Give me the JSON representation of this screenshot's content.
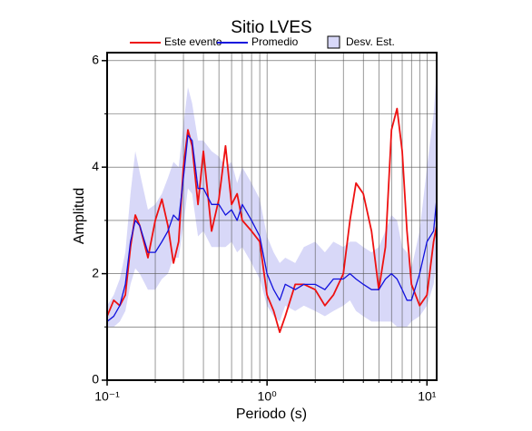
{
  "chart_data": {
    "type": "line",
    "title": "Sitio LVES",
    "xlabel": "Periodo (s)",
    "ylabel": "Amplitud",
    "xscale": "log",
    "grid": true,
    "xlim": [
      0.1,
      11.5
    ],
    "ylim": [
      0,
      6.15
    ],
    "xticks": [
      {
        "value": 0.1,
        "label": "10⁻¹"
      },
      {
        "value": 1,
        "label": "10⁰"
      },
      {
        "value": 10,
        "label": "10¹"
      }
    ],
    "x_minor_ticks": [
      0.2,
      0.3,
      0.4,
      0.5,
      0.6,
      0.7,
      0.8,
      0.9,
      2,
      3,
      4,
      5,
      6,
      7,
      8,
      9
    ],
    "yticks": [
      0,
      2,
      4,
      6
    ],
    "y_minor_ticks": [
      1,
      3,
      5
    ],
    "x": [
      0.1,
      0.11,
      0.12,
      0.13,
      0.14,
      0.15,
      0.16,
      0.18,
      0.2,
      0.22,
      0.24,
      0.26,
      0.28,
      0.3,
      0.32,
      0.34,
      0.37,
      0.4,
      0.45,
      0.5,
      0.55,
      0.6,
      0.65,
      0.7,
      0.8,
      0.9,
      1.0,
      1.1,
      1.2,
      1.3,
      1.5,
      1.7,
      2.0,
      2.3,
      2.6,
      3.0,
      3.3,
      3.6,
      4.0,
      4.5,
      5.0,
      5.5,
      6.0,
      6.5,
      7.0,
      7.5,
      8.0,
      9.0,
      10.0,
      11.0,
      11.5
    ],
    "series": [
      {
        "name": "Este evento",
        "color": "#ee1111",
        "values": [
          1.2,
          1.5,
          1.4,
          1.6,
          2.5,
          3.1,
          2.9,
          2.3,
          3.0,
          3.4,
          2.9,
          2.2,
          2.6,
          4.0,
          4.7,
          4.4,
          3.3,
          4.3,
          2.8,
          3.4,
          4.4,
          3.3,
          3.5,
          3.0,
          2.8,
          2.6,
          1.6,
          1.3,
          0.9,
          1.2,
          1.8,
          1.8,
          1.7,
          1.4,
          1.6,
          2.0,
          3.0,
          3.7,
          3.5,
          2.8,
          1.7,
          2.5,
          4.7,
          5.1,
          4.3,
          2.8,
          1.8,
          1.4,
          1.6,
          2.6,
          2.9
        ]
      },
      {
        "name": "Promedio",
        "color": "#1111dd",
        "values": [
          1.1,
          1.2,
          1.4,
          1.8,
          2.6,
          3.0,
          2.9,
          2.4,
          2.4,
          2.6,
          2.8,
          3.1,
          3.0,
          3.8,
          4.6,
          4.5,
          3.6,
          3.6,
          3.3,
          3.3,
          3.1,
          3.2,
          3.0,
          3.3,
          3.0,
          2.7,
          2.0,
          1.7,
          1.5,
          1.8,
          1.7,
          1.8,
          1.8,
          1.7,
          1.9,
          1.9,
          2.0,
          1.9,
          1.8,
          1.7,
          1.7,
          1.9,
          2.0,
          1.9,
          1.7,
          1.5,
          1.5,
          2.0,
          2.6,
          2.8,
          3.4
        ]
      }
    ],
    "band": {
      "name": "Desv. Est.",
      "color": "#d8d8f8",
      "lower": [
        1.0,
        1.0,
        1.1,
        1.3,
        1.8,
        2.1,
        2.0,
        1.7,
        1.7,
        1.9,
        2.0,
        2.3,
        2.3,
        2.9,
        3.6,
        3.5,
        2.7,
        2.8,
        2.5,
        2.5,
        2.5,
        2.6,
        2.4,
        2.5,
        2.2,
        1.9,
        1.4,
        1.2,
        1.1,
        1.4,
        1.3,
        1.4,
        1.3,
        1.2,
        1.3,
        1.4,
        1.5,
        1.3,
        1.2,
        1.1,
        1.1,
        1.1,
        1.1,
        1.0,
        1.0,
        1.0,
        1.1,
        1.2,
        1.4,
        1.8,
        2.2
      ],
      "upper": [
        1.4,
        1.6,
        1.9,
        2.4,
        3.5,
        4.3,
        3.9,
        3.2,
        3.3,
        3.5,
        3.8,
        4.1,
        4.0,
        4.8,
        5.5,
        5.2,
        4.5,
        4.5,
        4.3,
        4.2,
        4.0,
        4.1,
        3.7,
        4.0,
        3.7,
        3.4,
        2.7,
        2.4,
        2.2,
        2.3,
        2.2,
        2.5,
        2.6,
        2.4,
        2.6,
        2.5,
        2.6,
        2.6,
        2.5,
        2.4,
        2.5,
        2.8,
        3.1,
        3.0,
        2.5,
        2.4,
        2.1,
        2.8,
        4.0,
        5.0,
        5.8
      ]
    }
  }
}
